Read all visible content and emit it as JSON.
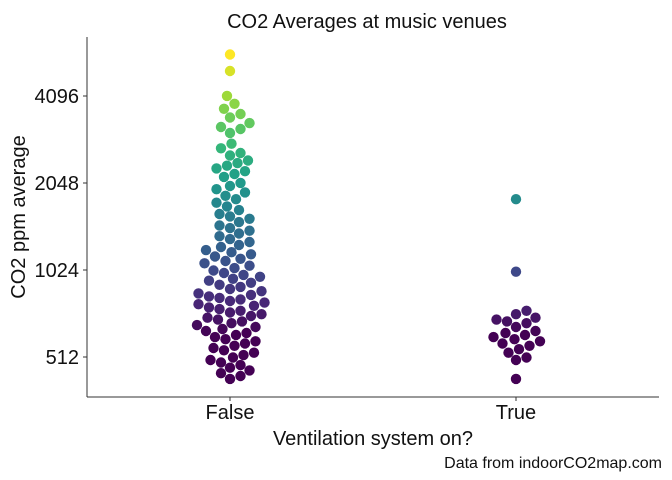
{
  "chart_data": {
    "type": "scatter",
    "subtype": "beeswarm",
    "title": "CO2 Averages at music venues",
    "xlabel": "Ventilation system on?",
    "ylabel": "CO2 ppm average",
    "caption": "Data from indoorCO2map.com",
    "y_scale": "log2",
    "ylim": [
      400,
      6000
    ],
    "y_ticks": [
      {
        "value": 512,
        "label": "512"
      },
      {
        "value": 1024,
        "label": "1024"
      },
      {
        "value": 2048,
        "label": "2048"
      },
      {
        "value": 4096,
        "label": "4096"
      }
    ],
    "categories": [
      "False",
      "True"
    ],
    "color_scale": "viridis (by CO2 value)",
    "grid": false,
    "series": [
      {
        "category": "False",
        "values": [
          5700,
          5000,
          4100,
          3850,
          3700,
          3550,
          3450,
          3300,
          3200,
          3150,
          3050,
          2800,
          2700,
          2600,
          2550,
          2450,
          2400,
          2350,
          2300,
          2250,
          2200,
          2150,
          2050,
          2000,
          1950,
          1900,
          1850,
          1800,
          1750,
          1700,
          1650,
          1600,
          1570,
          1540,
          1500,
          1460,
          1430,
          1400,
          1370,
          1340,
          1310,
          1280,
          1250,
          1230,
          1200,
          1180,
          1160,
          1140,
          1120,
          1100,
          1080,
          1060,
          1040,
          1020,
          1000,
          985,
          970,
          955,
          940,
          925,
          910,
          895,
          880,
          865,
          850,
          840,
          830,
          820,
          810,
          800,
          790,
          780,
          770,
          760,
          750,
          740,
          730,
          720,
          710,
          700,
          690,
          680,
          670,
          660,
          650,
          640,
          630,
          620,
          610,
          600,
          590,
          580,
          570,
          560,
          550,
          540,
          530,
          520,
          510,
          500,
          490,
          480,
          470,
          460,
          450,
          440,
          430
        ]
      },
      {
        "category": "True",
        "values": [
          1800,
          1010,
          740,
          720,
          700,
          690,
          680,
          670,
          650,
          630,
          620,
          610,
          600,
          590,
          580,
          570,
          560,
          545,
          530,
          510,
          500,
          430
        ]
      }
    ]
  }
}
